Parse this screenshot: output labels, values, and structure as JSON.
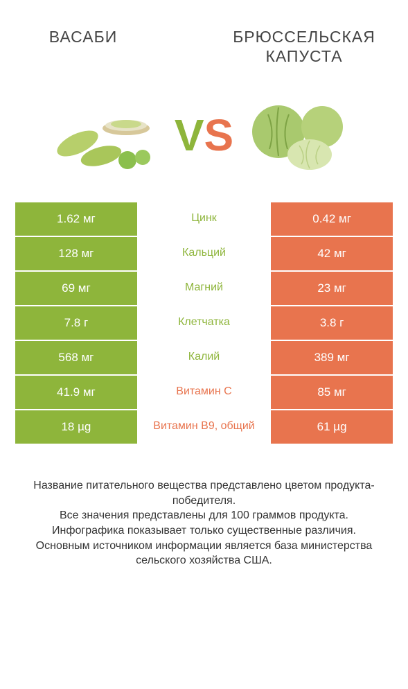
{
  "colors": {
    "left": "#8eb53b",
    "right": "#e8744e"
  },
  "header": {
    "left_title": "ВАСАБИ",
    "right_title": "БРЮССЕЛЬСКАЯ КАПУСТА"
  },
  "vs": {
    "v": "V",
    "s": "S"
  },
  "table": {
    "rows": [
      {
        "left": "1.62 мг",
        "mid": "Цинк",
        "right": "0.42 мг",
        "winner": "left"
      },
      {
        "left": "128 мг",
        "mid": "Кальций",
        "right": "42 мг",
        "winner": "left"
      },
      {
        "left": "69 мг",
        "mid": "Магний",
        "right": "23 мг",
        "winner": "left"
      },
      {
        "left": "7.8 г",
        "mid": "Клетчатка",
        "right": "3.8 г",
        "winner": "left"
      },
      {
        "left": "568 мг",
        "mid": "Калий",
        "right": "389 мг",
        "winner": "left"
      },
      {
        "left": "41.9 мг",
        "mid": "Витамин C",
        "right": "85 мг",
        "winner": "right"
      },
      {
        "left": "18 µg",
        "mid": "Витамин B9, общий",
        "right": "61 µg",
        "winner": "right"
      }
    ]
  },
  "footer": {
    "line1": "Название питательного вещества представлено цветом продукта-победителя.",
    "line2": "Все значения представлены для 100 граммов продукта.",
    "line3": "Инфографика показывает только существенные различия.",
    "line4": "Основным источником информации является база министерства сельского хозяйства США."
  }
}
